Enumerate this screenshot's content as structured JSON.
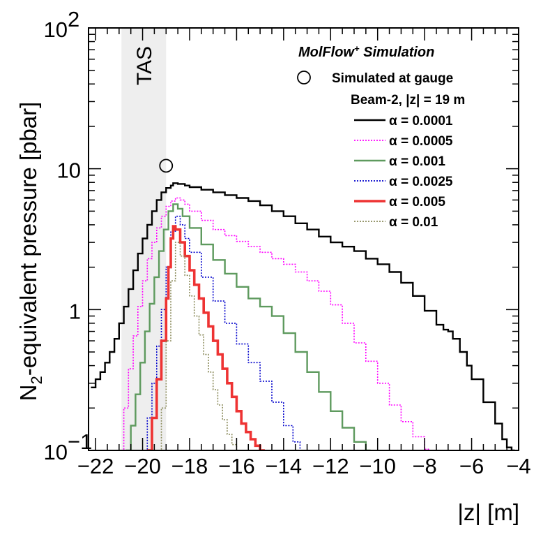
{
  "chart_data": {
    "type": "line",
    "title": "MolFlow⁺ Simulation",
    "xlabel": "|z| [m]",
    "ylabel_main": "N",
    "ylabel_sub": "2",
    "ylabel_rest": "-equivalent pressure [pbar]",
    "x_range": [
      -22.3,
      -4
    ],
    "y_range": [
      0.1,
      100
    ],
    "y_scale": "log",
    "x_tick_labels": [
      "−22",
      "−20",
      "−18",
      "−16",
      "−14",
      "−12",
      "−10",
      "−8",
      "−6",
      "−4"
    ],
    "x_tick_values": [
      -22,
      -20,
      -18,
      -16,
      -14,
      -12,
      -10,
      -8,
      -6,
      -4
    ],
    "y_tick_labels": [
      {
        "value": 0.1,
        "base": "10",
        "exp": "−1"
      },
      {
        "value": 1,
        "base": "1",
        "exp": ""
      },
      {
        "value": 10,
        "base": "10",
        "exp": ""
      },
      {
        "value": 100,
        "base": "10",
        "exp": "2"
      }
    ],
    "shaded_region": {
      "label": "TAS",
      "x_from": -20.9,
      "x_to": -19.0,
      "color": "#eeeeee"
    },
    "gauge_marker": {
      "label": "Simulated at gauge",
      "x": -19.0,
      "y": 10.5
    },
    "legend_header": "Beam-2, |z| = 19 m",
    "series": [
      {
        "name": "α = 0.0001",
        "color": "#000000",
        "width": 2.4,
        "dash": "",
        "x": [
          -22.2,
          -22.0,
          -21.8,
          -21.6,
          -21.4,
          -21.2,
          -21.0,
          -20.8,
          -20.6,
          -20.4,
          -20.2,
          -20.0,
          -19.8,
          -19.6,
          -19.4,
          -19.2,
          -19.0,
          -18.8,
          -18.7,
          -18.5,
          -18.2,
          -18.0,
          -17.5,
          -17.0,
          -16.5,
          -16.0,
          -15.5,
          -15.0,
          -14.5,
          -14.0,
          -13.5,
          -13.0,
          -12.5,
          -12.0,
          -11.5,
          -11.0,
          -10.5,
          -10.0,
          -9.5,
          -9.0,
          -8.5,
          -8.0,
          -7.5,
          -7.2,
          -7.0,
          -6.8,
          -6.5,
          -6.2,
          -6.0,
          -5.5,
          -5.0,
          -4.7,
          -4.5,
          -4.3,
          -4.2
        ],
        "y": [
          0.28,
          0.32,
          0.36,
          0.42,
          0.5,
          0.62,
          0.8,
          1.05,
          1.4,
          1.9,
          2.5,
          3.2,
          4.0,
          5.0,
          6.0,
          6.8,
          7.3,
          7.6,
          7.9,
          7.8,
          7.6,
          7.4,
          7.1,
          6.8,
          6.5,
          6.2,
          5.9,
          5.5,
          5.0,
          4.6,
          4.1,
          3.7,
          3.3,
          3.0,
          2.8,
          2.6,
          2.3,
          2.1,
          1.85,
          1.55,
          1.25,
          0.98,
          0.78,
          0.72,
          0.7,
          0.62,
          0.5,
          0.4,
          0.32,
          0.22,
          0.155,
          0.12,
          0.105,
          0.1,
          0.095
        ]
      },
      {
        "name": "α = 0.0005",
        "color": "#ff00ff",
        "width": 1.6,
        "dash": "2,2",
        "x": [
          -21.0,
          -20.8,
          -20.6,
          -20.4,
          -20.2,
          -20.0,
          -19.8,
          -19.6,
          -19.4,
          -19.2,
          -19.0,
          -18.8,
          -18.6,
          -18.4,
          -18.2,
          -18.0,
          -17.5,
          -17.0,
          -16.5,
          -16.0,
          -15.5,
          -15.0,
          -14.5,
          -14.0,
          -13.5,
          -13.0,
          -12.5,
          -12.0,
          -11.5,
          -11.0,
          -10.5,
          -10.0,
          -9.5,
          -9.0,
          -8.5,
          -8.0
        ],
        "y": [
          0.1,
          0.2,
          0.38,
          0.65,
          1.05,
          1.6,
          2.3,
          3.0,
          3.8,
          4.6,
          5.4,
          5.9,
          6.2,
          6.0,
          5.6,
          5.0,
          4.3,
          3.7,
          3.35,
          3.05,
          2.8,
          2.55,
          2.3,
          2.1,
          1.85,
          1.6,
          1.35,
          1.08,
          0.8,
          0.58,
          0.43,
          0.3,
          0.21,
          0.16,
          0.125,
          0.102
        ]
      },
      {
        "name": "α = 0.001",
        "color": "#5e9a5e",
        "width": 2.4,
        "dash": "",
        "x": [
          -20.7,
          -20.5,
          -20.3,
          -20.1,
          -19.9,
          -19.7,
          -19.5,
          -19.3,
          -19.1,
          -18.9,
          -18.7,
          -18.5,
          -18.3,
          -18.0,
          -17.5,
          -17.0,
          -16.5,
          -16.0,
          -15.5,
          -15.0,
          -14.5,
          -14.0,
          -13.5,
          -13.0,
          -12.5,
          -12.0,
          -11.5,
          -11.0,
          -10.5
        ],
        "y": [
          0.1,
          0.15,
          0.25,
          0.42,
          0.7,
          1.1,
          1.7,
          2.6,
          3.7,
          5.0,
          5.6,
          5.2,
          4.6,
          3.8,
          2.9,
          2.25,
          1.8,
          1.45,
          1.2,
          1.05,
          0.9,
          0.68,
          0.5,
          0.36,
          0.26,
          0.19,
          0.145,
          0.115,
          0.1
        ]
      },
      {
        "name": "α = 0.0025",
        "color": "#0000cc",
        "width": 1.6,
        "dash": "2,2",
        "x": [
          -20.0,
          -19.8,
          -19.6,
          -19.4,
          -19.2,
          -19.0,
          -18.8,
          -18.6,
          -18.4,
          -18.2,
          -18.0,
          -17.5,
          -17.0,
          -16.5,
          -16.0,
          -15.5,
          -15.0,
          -14.5,
          -14.0,
          -13.6,
          -13.3
        ],
        "y": [
          0.1,
          0.17,
          0.3,
          0.55,
          1.0,
          2.0,
          3.6,
          4.6,
          4.0,
          3.2,
          2.55,
          1.7,
          1.15,
          0.8,
          0.57,
          0.42,
          0.31,
          0.22,
          0.15,
          0.115,
          0.1
        ]
      },
      {
        "name": "α = 0.005",
        "color": "#ee3333",
        "width": 3.6,
        "dash": "",
        "x": [
          -19.8,
          -19.6,
          -19.4,
          -19.2,
          -19.0,
          -18.9,
          -18.8,
          -18.7,
          -18.6,
          -18.4,
          -18.2,
          -18.0,
          -17.8,
          -17.6,
          -17.4,
          -17.2,
          -17.0,
          -16.8,
          -16.6,
          -16.4,
          -16.2,
          -16.0,
          -15.8,
          -15.6,
          -15.4,
          -15.2,
          -15.0
        ],
        "y": [
          0.1,
          0.17,
          0.32,
          0.6,
          1.2,
          2.0,
          3.2,
          3.9,
          3.7,
          3.0,
          2.4,
          1.9,
          1.5,
          1.2,
          0.95,
          0.76,
          0.6,
          0.48,
          0.38,
          0.3,
          0.24,
          0.19,
          0.155,
          0.135,
          0.12,
          0.108,
          0.1
        ]
      },
      {
        "name": "α = 0.01",
        "color": "#8a8a5a",
        "width": 1.6,
        "dash": "2,2",
        "x": [
          -19.4,
          -19.2,
          -19.0,
          -18.8,
          -18.6,
          -18.4,
          -18.2,
          -18.0,
          -17.8,
          -17.6,
          -17.4,
          -17.2,
          -17.0,
          -16.8,
          -16.6,
          -16.4,
          -16.2,
          -16.0
        ],
        "y": [
          0.1,
          0.2,
          0.6,
          1.6,
          3.0,
          2.4,
          1.75,
          1.25,
          0.9,
          0.66,
          0.48,
          0.36,
          0.27,
          0.21,
          0.165,
          0.13,
          0.11,
          0.1
        ]
      }
    ]
  }
}
